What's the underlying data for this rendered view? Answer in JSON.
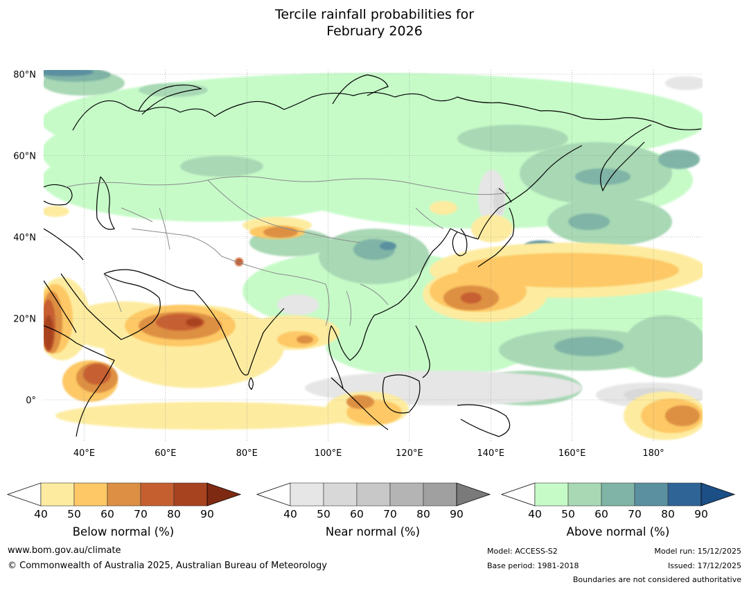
{
  "title_line1": "Tercile rainfall probabilities for",
  "title_line2": "February 2026",
  "lat_ticks": [
    "80°N",
    "60°N",
    "40°N",
    "20°N",
    "0°"
  ],
  "lon_ticks": [
    "40°E",
    "60°E",
    "80°E",
    "100°E",
    "120°E",
    "140°E",
    "160°E",
    "180°"
  ],
  "colorbars": [
    {
      "label": "Below normal (%)",
      "ticks": [
        "40",
        "50",
        "60",
        "70",
        "80",
        "90"
      ],
      "colors": [
        "#fdeca0",
        "#fdc865",
        "#dd8f43",
        "#c65f30",
        "#a8431f",
        "#7e2a12"
      ]
    },
    {
      "label": "Near normal (%)",
      "ticks": [
        "40",
        "50",
        "60",
        "70",
        "80",
        "90"
      ],
      "colors": [
        "#e6e6e6",
        "#d8d8d8",
        "#c8c8c8",
        "#b4b4b4",
        "#a0a0a0",
        "#7a7a7a"
      ]
    },
    {
      "label": "Above normal (%)",
      "ticks": [
        "40",
        "50",
        "60",
        "70",
        "80",
        "90"
      ],
      "colors": [
        "#c6fbc8",
        "#a8d8b4",
        "#7fb4a6",
        "#5a90a0",
        "#2f6496",
        "#1b4f85"
      ]
    }
  ],
  "footer": {
    "website": "www.bom.gov.au/climate",
    "copyright": "© Commonwealth of Australia 2025, Australian Bureau of Meteorology",
    "model": "Model: ACCESS-S2",
    "base_period": "Base period: 1981-2018",
    "model_run": "Model run: 15/12/2025",
    "issued": "Issued: 17/12/2025",
    "boundaries": "Boundaries are not considered authoritative"
  }
}
